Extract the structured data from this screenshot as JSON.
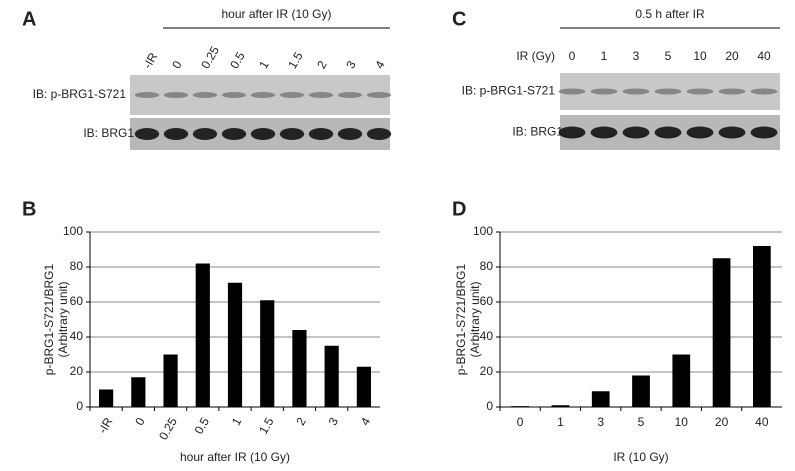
{
  "panels": [
    {
      "letter": "A",
      "header": "hour after IR (10 Gy)",
      "lanes": [
        "-IR",
        "0",
        "0.25",
        "0.5",
        "1",
        "1.5",
        "2",
        "3",
        "4"
      ],
      "blots": [
        "IB: p-BRG1-S721",
        "IB: BRG1"
      ]
    },
    {
      "letter": "C",
      "header": "0.5 h after IR",
      "lane_title": "IR (Gy)",
      "lanes": [
        "0",
        "1",
        "3",
        "5",
        "10",
        "20",
        "40"
      ],
      "blots": [
        "IB: p-BRG1-S721",
        "IB: BRG1"
      ]
    }
  ],
  "chart_data": [
    {
      "type": "bar",
      "panel": "B",
      "ylabel": [
        "p-BRG1-S721/BRG1",
        "(Arbitrary unit)"
      ],
      "xlabel": "hour after IR (10 Gy)",
      "categories": [
        "-IR",
        "0",
        "0.25",
        "0.5",
        "1",
        "1.5",
        "2",
        "3",
        "4"
      ],
      "values": [
        10,
        17,
        30,
        82,
        71,
        61,
        44,
        35,
        23
      ],
      "color": "#000000",
      "ylim": [
        0,
        100
      ],
      "yticks": [
        0,
        20,
        40,
        60,
        80,
        100
      ],
      "grid": true
    },
    {
      "type": "bar",
      "panel": "D",
      "ylabel": [
        "p-BRG1-S721/BRG1",
        "(Arbitrary unit)"
      ],
      "xlabel": "IR (10 Gy)",
      "categories": [
        "0",
        "1",
        "3",
        "5",
        "10",
        "20",
        "40"
      ],
      "values": [
        0.5,
        1,
        9,
        18,
        30,
        85,
        92
      ],
      "color": "#000000",
      "ylim": [
        0,
        100
      ],
      "yticks": [
        0,
        20,
        40,
        60,
        80,
        100
      ],
      "grid": true
    }
  ]
}
